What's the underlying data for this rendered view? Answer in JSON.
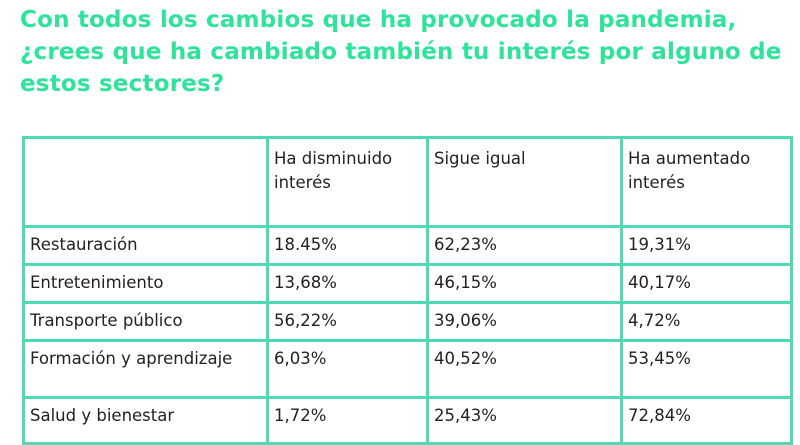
{
  "title": "Con todos los cambios que ha provocado la pandemia, ¿crees que ha cambiado también tu interés por alguno de estos sectores?",
  "colors": {
    "title": "#2fe39b",
    "border": "#4fdab7"
  },
  "table": {
    "headers": [
      "",
      "Ha disminuido interés",
      "Sigue igual",
      "Ha aumentado interés"
    ],
    "rows": [
      [
        "Restauración",
        "18.45%",
        "62,23%",
        "19,31%"
      ],
      [
        "Entretenimiento",
        "13,68%",
        "46,15%",
        "40,17%"
      ],
      [
        "Transporte público",
        "56,22%",
        "39,06%",
        "4,72%"
      ],
      [
        "Formación y aprendizaje",
        "6,03%",
        "40,52%",
        "53,45%"
      ],
      [
        "Salud y bienestar",
        "1,72%",
        "25,43%",
        "72,84%"
      ]
    ]
  }
}
